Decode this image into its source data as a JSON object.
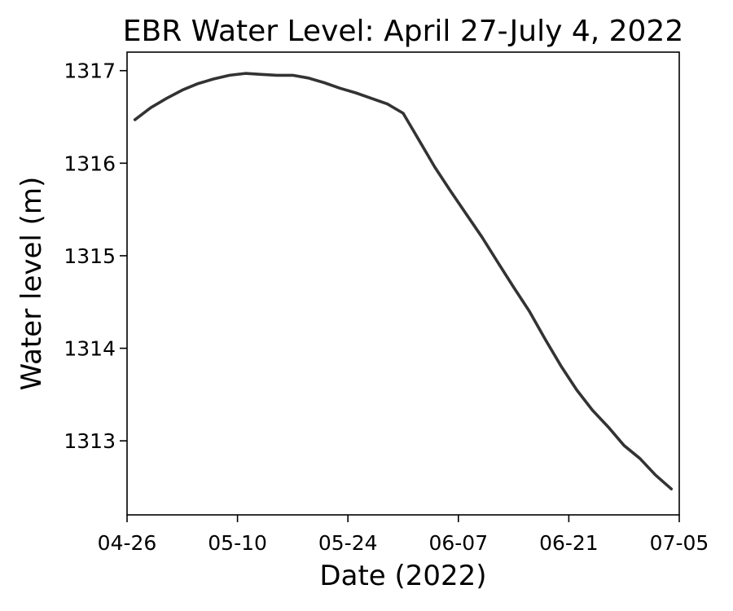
{
  "chart_data": {
    "type": "line",
    "title": "EBR Water Level: April 27-July 4, 2022",
    "xlabel": "Date (2022)",
    "ylabel": "Water level (m)",
    "x_range": [
      "2022-04-26",
      "2022-07-05"
    ],
    "ylim": [
      1312.2,
      1317.2
    ],
    "x_ticks": [
      {
        "date": "2022-04-26",
        "label": "04-26"
      },
      {
        "date": "2022-05-10",
        "label": "05-10"
      },
      {
        "date": "2022-05-24",
        "label": "05-24"
      },
      {
        "date": "2022-06-07",
        "label": "06-07"
      },
      {
        "date": "2022-06-21",
        "label": "06-21"
      },
      {
        "date": "2022-07-05",
        "label": "07-05"
      }
    ],
    "y_ticks": [
      1313,
      1314,
      1315,
      1316,
      1317
    ],
    "grid": false,
    "line_color": "#333333",
    "series": [
      {
        "x": [
          "2022-04-27",
          "2022-04-29",
          "2022-05-01",
          "2022-05-03",
          "2022-05-05",
          "2022-05-07",
          "2022-05-09",
          "2022-05-11",
          "2022-05-13",
          "2022-05-15",
          "2022-05-17",
          "2022-05-19",
          "2022-05-21",
          "2022-05-23",
          "2022-05-25",
          "2022-05-27",
          "2022-05-29",
          "2022-05-31",
          "2022-06-02",
          "2022-06-04",
          "2022-06-06",
          "2022-06-08",
          "2022-06-10",
          "2022-06-12",
          "2022-06-14",
          "2022-06-16",
          "2022-06-18",
          "2022-06-20",
          "2022-06-22",
          "2022-06-24",
          "2022-06-26",
          "2022-06-28",
          "2022-06-30",
          "2022-07-02",
          "2022-07-04"
        ],
        "y": [
          1316.47,
          1316.6,
          1316.7,
          1316.79,
          1316.86,
          1316.91,
          1316.95,
          1316.97,
          1316.96,
          1316.95,
          1316.95,
          1316.92,
          1316.87,
          1316.81,
          1316.76,
          1316.7,
          1316.64,
          1316.54,
          1316.25,
          1315.96,
          1315.7,
          1315.45,
          1315.2,
          1314.93,
          1314.66,
          1314.4,
          1314.1,
          1313.81,
          1313.55,
          1313.33,
          1313.15,
          1312.95,
          1312.81,
          1312.63,
          1312.48
        ]
      }
    ]
  }
}
